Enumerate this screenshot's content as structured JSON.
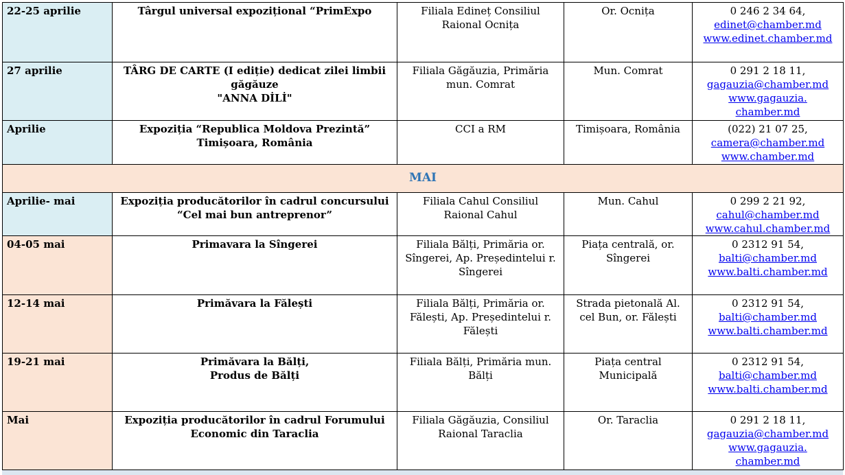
{
  "rows_before": [
    {
      "date": "22-25 aprilie",
      "date_bg": "blue",
      "title": [
        "Târgul universal expozițional “PrimExpo"
      ],
      "organizer": [
        "Filiala Edineț Consiliul",
        "Raional Ocnița"
      ],
      "location": [
        "Or. Ocnița"
      ],
      "phone": "0 246 2 34 64,",
      "links": [
        "edinet@chamber.md",
        "www.edinet.chamber.md"
      ]
    },
    {
      "date": "27 aprilie",
      "date_bg": "blue",
      "title": [
        "TÂRG DE CARTE (I ediție) dedicat zilei limbii",
        "găgăuze",
        "\"ANNA DİLİ\""
      ],
      "organizer": [
        "Filiala Găgăuzia, Primăria",
        "mun. Comrat"
      ],
      "location": [
        "Mun. Comrat"
      ],
      "phone": "0 291 2 18 11,",
      "links": [
        "gagauzia@chamber.md",
        "www.gagauzia.",
        "chamber.md"
      ]
    },
    {
      "date": "Aprilie",
      "date_bg": "blue",
      "title": [
        "Expoziția “Republica Moldova Prezintă”",
        "Timișoara, România"
      ],
      "organizer": [
        "CCI a RM"
      ],
      "location": [
        "Timișoara, România"
      ],
      "phone": "(022) 21 07 25,",
      "links": [
        "camera@chamber.md",
        "www.chamber.md"
      ]
    }
  ],
  "month_header": "MAI",
  "rows_after": [
    {
      "date": "Aprilie- mai",
      "date_bg": "blue",
      "title": [
        "Expoziția producătorilor în cadrul concursului",
        "“Cel mai bun antreprenor”"
      ],
      "organizer": [
        "Filiala Cahul Consiliul",
        "Raional Cahul"
      ],
      "location": [
        "Mun. Cahul"
      ],
      "phone": "0 299 2 21 92,",
      "links": [
        "cahul@chamber.md",
        "www.cahul.chamber.md"
      ]
    },
    {
      "date": "04-05 mai",
      "date_bg": "peach",
      "title": [
        "Primavara  la Sîngerei"
      ],
      "organizer": [
        "Filiala Bălți, Primăria or.",
        "Sîngerei, Ap. Președintelui r.",
        "Sîngerei"
      ],
      "location": [
        "Piața centrală, or.",
        "Sîngerei"
      ],
      "phone": "0 2312 91 54,",
      "links": [
        "balti@chamber.md",
        "www.balti.chamber.md"
      ]
    },
    {
      "date": "12-14 mai",
      "date_bg": "peach",
      "title": [
        "Primăvara la Fălești"
      ],
      "organizer": [
        "Filiala Bălți, Primăria or.",
        "Fălești, Ap. Președintelui r.",
        "Fălești"
      ],
      "location": [
        "Strada pietonală Al.",
        "cel Bun, or.  Fălești"
      ],
      "phone": "0 2312 91 54,",
      "links": [
        "balti@chamber.md",
        "www.balti.chamber.md"
      ]
    },
    {
      "date": "19-21 mai",
      "date_bg": "peach",
      "title": [
        "Primăvara la Bălți,",
        "Produs de Bălți"
      ],
      "organizer": [
        "Filiala Bălți, Primăria mun.",
        "Bălți"
      ],
      "location": [
        "Piața central",
        "Municipală"
      ],
      "phone": "0 2312 91 54,",
      "links": [
        "balti@chamber.md",
        "www.balti.chamber.md"
      ]
    },
    {
      "date": "Mai",
      "date_bg": "peach",
      "title": [
        "Expoziția producătorilor în cadrul Forumului",
        "Economic din Taraclia"
      ],
      "organizer": [
        "Filiala Găgăuzia, Consiliul",
        "Raional Taraclia"
      ],
      "location": [
        "Or. Taraclia"
      ],
      "phone": "0 291 2 18 11,",
      "links": [
        "gagauzia@chamber.md",
        "www.gagauzia.",
        "chamber.md"
      ]
    }
  ],
  "colors": {
    "date_blue": "#daeef3",
    "date_peach": "#fbe4d5",
    "month_text": "#2e74b5",
    "link": "#0000ee"
  }
}
